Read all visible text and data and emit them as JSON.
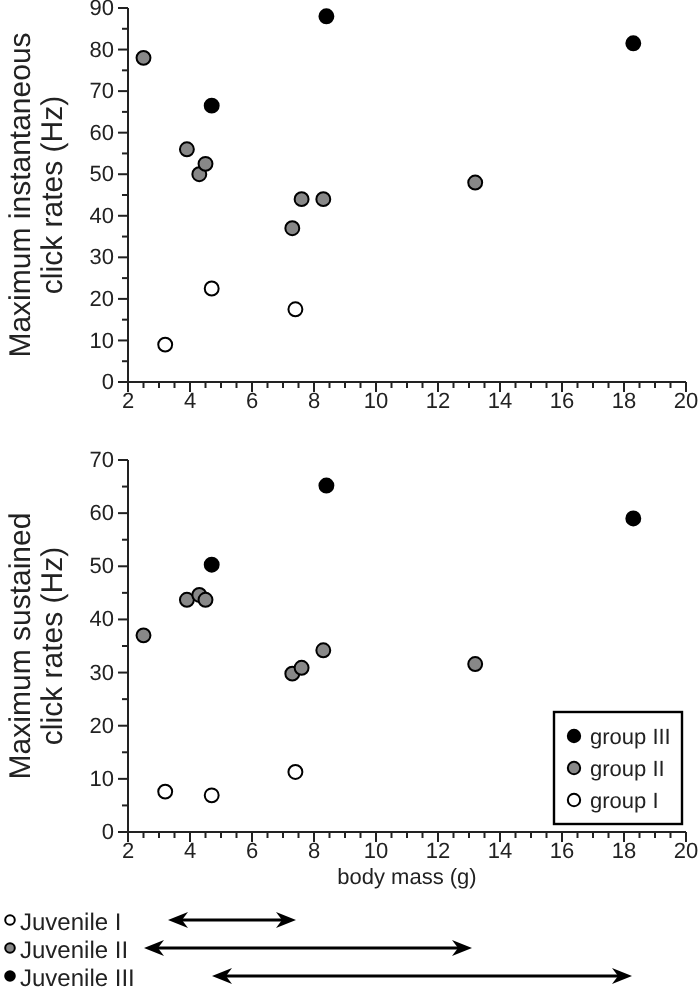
{
  "chart_data": [
    {
      "type": "scatter",
      "ylabel": "Maximum instantaneous\nclick rates (Hz)",
      "xlim": [
        2,
        20
      ],
      "ylim": [
        0,
        90
      ],
      "xticks": [
        2,
        {
          "value": 2.5,
          "label": null
        },
        {
          "value": 3,
          "label": null
        },
        {
          "value": 3.5,
          "label": null
        },
        4,
        {
          "value": 4.5,
          "label": null
        },
        {
          "value": 5,
          "label": null
        },
        {
          "value": 5.5,
          "label": null
        },
        6,
        {
          "value": 6.5,
          "label": null
        },
        {
          "value": 7,
          "label": null
        },
        {
          "value": 7.5,
          "label": null
        },
        8,
        {
          "value": 8.5,
          "label": null
        },
        {
          "value": 9,
          "label": null
        },
        {
          "value": 9.5,
          "label": null
        },
        10,
        {
          "value": 10.5,
          "label": null
        },
        {
          "value": 11,
          "label": null
        },
        {
          "value": 11.5,
          "label": null
        },
        12,
        {
          "value": 12.5,
          "label": null
        },
        {
          "value": 13,
          "label": null
        },
        {
          "value": 13.5,
          "label": null
        },
        14,
        {
          "value": 14.5,
          "label": null
        },
        {
          "value": 15,
          "label": null
        },
        {
          "value": 15.5,
          "label": null
        },
        16,
        {
          "value": 16.5,
          "label": null
        },
        {
          "value": 17,
          "label": null
        },
        {
          "value": 17.5,
          "label": null
        },
        18,
        {
          "value": 18.5,
          "label": null
        },
        {
          "value": 19,
          "label": null
        },
        {
          "value": 19.5,
          "label": null
        },
        20
      ],
      "yticks": [
        0,
        {
          "value": 5,
          "label": null
        },
        10,
        {
          "value": 15,
          "label": null
        },
        20,
        {
          "value": 25,
          "label": null
        },
        30,
        {
          "value": 35,
          "label": null
        },
        40,
        {
          "value": 45,
          "label": null
        },
        50,
        {
          "value": 55,
          "label": null
        },
        60,
        {
          "value": 65,
          "label": null
        },
        70,
        {
          "value": 75,
          "label": null
        },
        80,
        {
          "value": 85,
          "label": null
        },
        90
      ],
      "marker": "circle",
      "legend": false,
      "grid": false,
      "series": [
        {
          "color": "#000000",
          "x": [
            4.7,
            8.4,
            18.3
          ],
          "values": [
            66.5,
            88,
            81.5
          ]
        },
        {
          "color": "#888888",
          "x": [
            2.5,
            3.9,
            4.3,
            4.5,
            7.3,
            7.6,
            8.3,
            13.2
          ],
          "values": [
            78,
            56,
            50,
            52.5,
            37,
            44,
            44,
            48
          ]
        },
        {
          "color": "#ffffff",
          "x": [
            3.2,
            4.7,
            7.4
          ],
          "values": [
            9,
            22.5,
            17.5
          ]
        }
      ]
    },
    {
      "type": "scatter",
      "ylabel": "Maximum sustained\nclick rates (Hz)",
      "xlabel": "body mass (g)",
      "xlim": [
        2,
        20
      ],
      "ylim": [
        0,
        70
      ],
      "xticks": [
        2,
        {
          "value": 2.5,
          "label": null
        },
        {
          "value": 3,
          "label": null
        },
        {
          "value": 3.5,
          "label": null
        },
        4,
        {
          "value": 4.5,
          "label": null
        },
        {
          "value": 5,
          "label": null
        },
        {
          "value": 5.5,
          "label": null
        },
        6,
        {
          "value": 6.5,
          "label": null
        },
        {
          "value": 7,
          "label": null
        },
        {
          "value": 7.5,
          "label": null
        },
        8,
        {
          "value": 8.5,
          "label": null
        },
        {
          "value": 9,
          "label": null
        },
        {
          "value": 9.5,
          "label": null
        },
        10,
        {
          "value": 10.5,
          "label": null
        },
        {
          "value": 11,
          "label": null
        },
        {
          "value": 11.5,
          "label": null
        },
        12,
        {
          "value": 12.5,
          "label": null
        },
        {
          "value": 13,
          "label": null
        },
        {
          "value": 13.5,
          "label": null
        },
        14,
        {
          "value": 14.5,
          "label": null
        },
        {
          "value": 15,
          "label": null
        },
        {
          "value": 15.5,
          "label": null
        },
        16,
        {
          "value": 16.5,
          "label": null
        },
        {
          "value": 17,
          "label": null
        },
        {
          "value": 17.5,
          "label": null
        },
        18,
        {
          "value": 18.5,
          "label": null
        },
        {
          "value": 19,
          "label": null
        },
        {
          "value": 19.5,
          "label": null
        },
        20
      ],
      "yticks": [
        0,
        {
          "value": 5,
          "label": null
        },
        10,
        {
          "value": 15,
          "label": null
        },
        20,
        {
          "value": 25,
          "label": null
        },
        30,
        {
          "value": 35,
          "label": null
        },
        40,
        {
          "value": 45,
          "label": null
        },
        50,
        {
          "value": 55,
          "label": null
        },
        60,
        {
          "value": 65,
          "label": null
        },
        70
      ],
      "marker": "circle",
      "legend": "bottom right",
      "grid": false,
      "series": [
        {
          "name": "group III",
          "color": "#000000",
          "x": [
            4.7,
            8.4,
            18.3
          ],
          "values": [
            50.3,
            65.2,
            59
          ]
        },
        {
          "name": "group II",
          "color": "#888888",
          "x": [
            2.5,
            3.9,
            4.3,
            4.5,
            7.3,
            7.6,
            8.3,
            13.2
          ],
          "values": [
            37,
            43.7,
            44.6,
            43.7,
            29.8,
            30.9,
            34.2,
            31.6
          ]
        },
        {
          "name": "group I",
          "color": "#ffffff",
          "x": [
            3.2,
            4.7,
            7.4
          ],
          "values": [
            7.6,
            6.9,
            11.3
          ]
        }
      ],
      "annotations": [
        "Juvenile I",
        "Juvenile II",
        "Juvenile III"
      ]
    }
  ]
}
